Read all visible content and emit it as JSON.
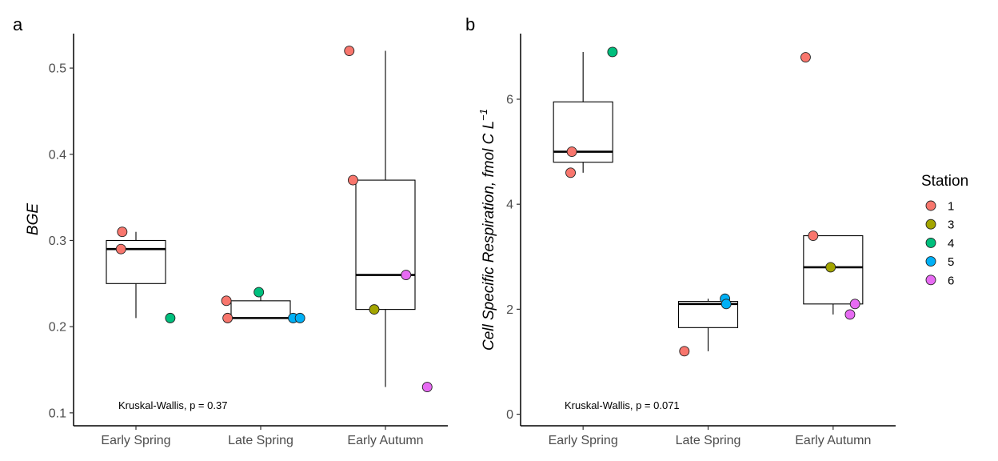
{
  "legend": {
    "title": "Station",
    "entries": [
      {
        "label": "1",
        "color": "#F8766D"
      },
      {
        "label": "3",
        "color": "#A3A500"
      },
      {
        "label": "4",
        "color": "#00BF7D"
      },
      {
        "label": "5",
        "color": "#00B0F6"
      },
      {
        "label": "6",
        "color": "#E76BF3"
      }
    ]
  },
  "chart_data": [
    {
      "type": "box",
      "panel": "a",
      "ylabel": "BGE",
      "categories": [
        "Early Spring",
        "Late Spring",
        "Early Autumn"
      ],
      "yticks": [
        0.1,
        0.2,
        0.3,
        0.4,
        0.5
      ],
      "ylim": [
        0.085,
        0.54
      ],
      "boxes": [
        {
          "category": "Early Spring",
          "q1": 0.25,
          "median": 0.29,
          "q3": 0.3,
          "whisker_low": 0.21,
          "whisker_high": 0.31
        },
        {
          "category": "Late Spring",
          "q1": 0.21,
          "median": 0.21,
          "q3": 0.23,
          "whisker_low": 0.21,
          "whisker_high": 0.24
        },
        {
          "category": "Early Autumn",
          "q1": 0.22,
          "median": 0.26,
          "q3": 0.37,
          "whisker_low": 0.13,
          "whisker_high": 0.52
        }
      ],
      "points": [
        {
          "category": "Early Spring",
          "station": "1",
          "y": 0.31,
          "jitter": -0.22
        },
        {
          "category": "Early Spring",
          "station": "1",
          "y": 0.29,
          "jitter": -0.24
        },
        {
          "category": "Early Spring",
          "station": "4",
          "y": 0.21,
          "jitter": 0.55
        },
        {
          "category": "Late Spring",
          "station": "1",
          "y": 0.23,
          "jitter": -0.55
        },
        {
          "category": "Late Spring",
          "station": "1",
          "y": 0.21,
          "jitter": -0.53
        },
        {
          "category": "Late Spring",
          "station": "4",
          "y": 0.24,
          "jitter": -0.03
        },
        {
          "category": "Late Spring",
          "station": "5",
          "y": 0.21,
          "jitter": 0.52
        },
        {
          "category": "Late Spring",
          "station": "5",
          "y": 0.21,
          "jitter": 0.63
        },
        {
          "category": "Early Autumn",
          "station": "1",
          "y": 0.52,
          "jitter": -0.58
        },
        {
          "category": "Early Autumn",
          "station": "1",
          "y": 0.37,
          "jitter": -0.52
        },
        {
          "category": "Early Autumn",
          "station": "3",
          "y": 0.22,
          "jitter": -0.18
        },
        {
          "category": "Early Autumn",
          "station": "6",
          "y": 0.26,
          "jitter": 0.33
        },
        {
          "category": "Early Autumn",
          "station": "6",
          "y": 0.13,
          "jitter": 0.67
        }
      ],
      "annotation": "Kruskal-Wallis, p = 0.37"
    },
    {
      "type": "box",
      "panel": "b",
      "ylabel": "Cell Specific Respiration, fmol C L",
      "ylabel_superscript": "−1",
      "categories": [
        "Early Spring",
        "Late Spring",
        "Early Autumn"
      ],
      "yticks": [
        0,
        2,
        4,
        6
      ],
      "ylim": [
        -0.22,
        7.25
      ],
      "boxes": [
        {
          "category": "Early Spring",
          "q1": 4.8,
          "median": 5.0,
          "q3": 5.95,
          "whisker_low": 4.6,
          "whisker_high": 6.9
        },
        {
          "category": "Late Spring",
          "q1": 1.65,
          "median": 2.1,
          "q3": 2.15,
          "whisker_low": 1.2,
          "whisker_high": 2.2
        },
        {
          "category": "Early Autumn",
          "q1": 2.1,
          "median": 2.8,
          "q3": 3.4,
          "whisker_low": 1.9,
          "whisker_high": 3.4
        }
      ],
      "points": [
        {
          "category": "Early Spring",
          "station": "1",
          "y": 5.0,
          "jitter": -0.18
        },
        {
          "category": "Early Spring",
          "station": "1",
          "y": 4.6,
          "jitter": -0.2
        },
        {
          "category": "Early Spring",
          "station": "4",
          "y": 6.9,
          "jitter": 0.47
        },
        {
          "category": "Late Spring",
          "station": "1",
          "y": 1.2,
          "jitter": -0.38
        },
        {
          "category": "Late Spring",
          "station": "5",
          "y": 2.2,
          "jitter": 0.27
        },
        {
          "category": "Late Spring",
          "station": "5",
          "y": 2.1,
          "jitter": 0.29
        },
        {
          "category": "Early Autumn",
          "station": "1",
          "y": 6.8,
          "jitter": -0.44
        },
        {
          "category": "Early Autumn",
          "station": "1",
          "y": 3.4,
          "jitter": -0.32
        },
        {
          "category": "Early Autumn",
          "station": "3",
          "y": 2.8,
          "jitter": -0.04
        },
        {
          "category": "Early Autumn",
          "station": "6",
          "y": 2.1,
          "jitter": 0.35
        },
        {
          "category": "Early Autumn",
          "station": "6",
          "y": 1.9,
          "jitter": 0.27
        }
      ],
      "annotation": "Kruskal-Wallis, p = 0.071"
    }
  ]
}
